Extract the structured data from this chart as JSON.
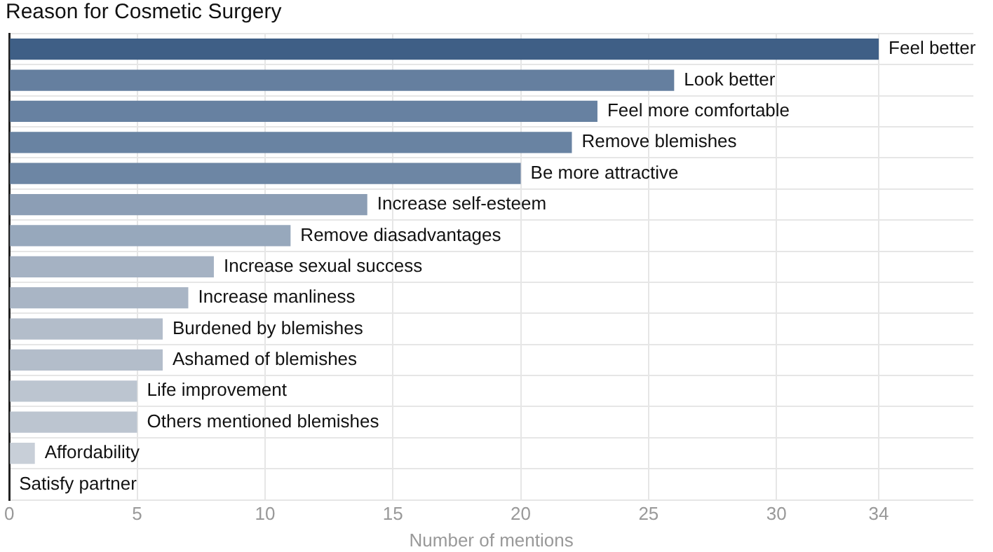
{
  "chart_data": {
    "type": "bar",
    "orientation": "horizontal",
    "title": "Reason for Cosmetic Surgery",
    "xlabel": "Number of mentions",
    "categories": [
      "Feel better",
      "Look better",
      "Feel more comfortable",
      "Remove blemishes",
      "Be more attractive",
      "Increase self-esteem",
      "Remove diasadvantages",
      "Increase sexual success",
      "Increase manliness",
      "Burdened by blemishes",
      "Ashamed of blemishes",
      "Life improvement",
      "Others mentioned blemishes",
      "Affordability",
      "Satisfy partner"
    ],
    "values": [
      34,
      26,
      23,
      22,
      20,
      14,
      11,
      8,
      7,
      6,
      6,
      5,
      5,
      1,
      0
    ],
    "colors": [
      "#3f5f86",
      "#657f9f",
      "#6781a1",
      "#6983a2",
      "#6d86a4",
      "#8c9eb5",
      "#97a8bc",
      "#a5b2c3",
      "#a9b5c5",
      "#b3bdca",
      "#b3bdca",
      "#bcc5d0",
      "#bcc5d0",
      "#c8cfd8",
      "#cdd3db"
    ],
    "xlim": [
      0,
      37.7
    ],
    "xticks": [
      0,
      5,
      10,
      15,
      20,
      25,
      30,
      34
    ],
    "grid": true,
    "tick_labels": "x"
  }
}
